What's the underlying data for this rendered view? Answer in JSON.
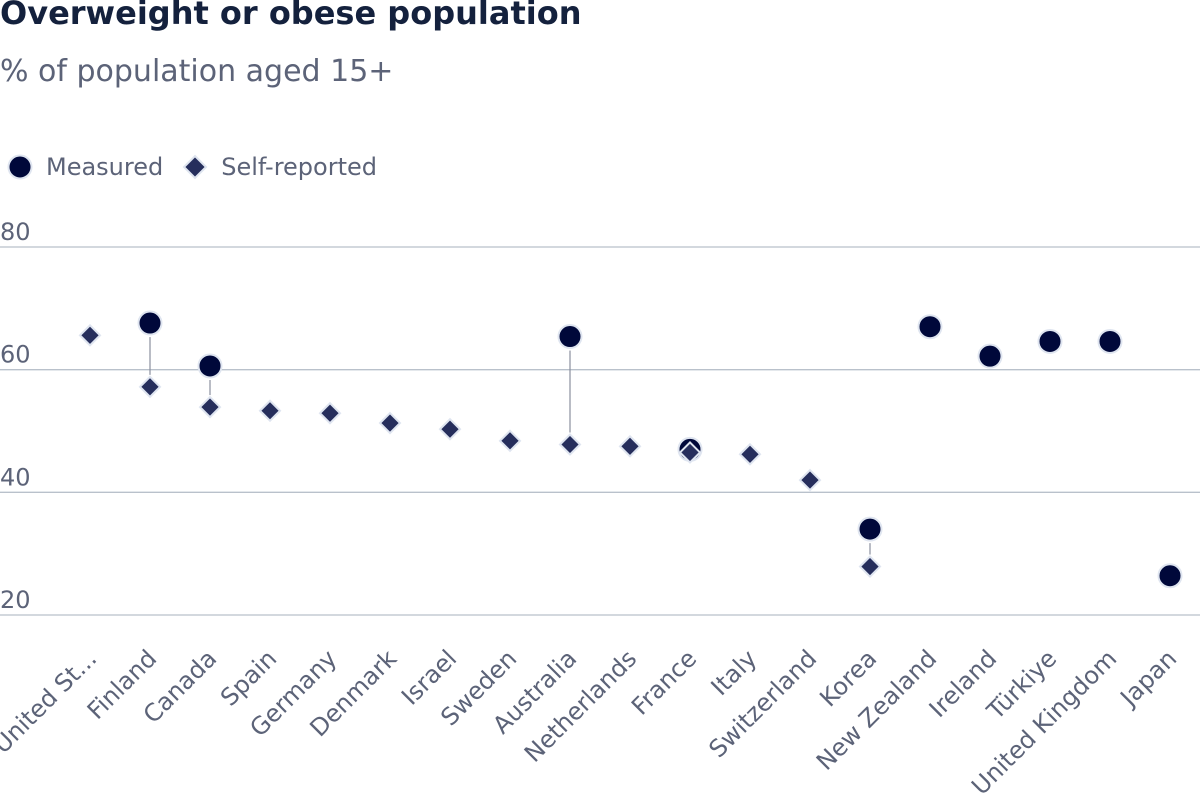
{
  "chart_data": {
    "type": "scatter",
    "title": "Overweight or obese population",
    "subtitle": "% of population aged 15+",
    "categories": [
      "United St...",
      "Finland",
      "Canada",
      "Spain",
      "Germany",
      "Denmark",
      "Israel",
      "Sweden",
      "Australia",
      "Netherlands",
      "France",
      "Italy",
      "Switzerland",
      "Korea",
      "New Zealand",
      "Ireland",
      "Türkiye",
      "United Kingdom",
      "Japan"
    ],
    "series": [
      {
        "name": "Measured",
        "marker": "circle",
        "values": [
          null,
          67.6,
          60.6,
          null,
          null,
          null,
          null,
          null,
          65.4,
          null,
          47.0,
          null,
          null,
          34.0,
          67.0,
          62.2,
          64.6,
          64.6,
          26.4
        ]
      },
      {
        "name": "Self-reported",
        "marker": "diamond",
        "values": [
          65.6,
          57.2,
          53.9,
          53.3,
          52.9,
          51.3,
          50.3,
          48.4,
          47.8,
          47.5,
          46.5,
          46.2,
          42.0,
          27.9,
          null,
          null,
          null,
          null,
          null
        ]
      }
    ],
    "y_ticks": [
      20,
      40,
      60,
      80
    ],
    "ylim": [
      15,
      82
    ],
    "grid": true,
    "legend_position": "top-left",
    "colors": {
      "measured": "#00083a",
      "self_reported": "#262e5c",
      "grid": "#b9c1cb",
      "connector": "#8a8f9e"
    }
  }
}
